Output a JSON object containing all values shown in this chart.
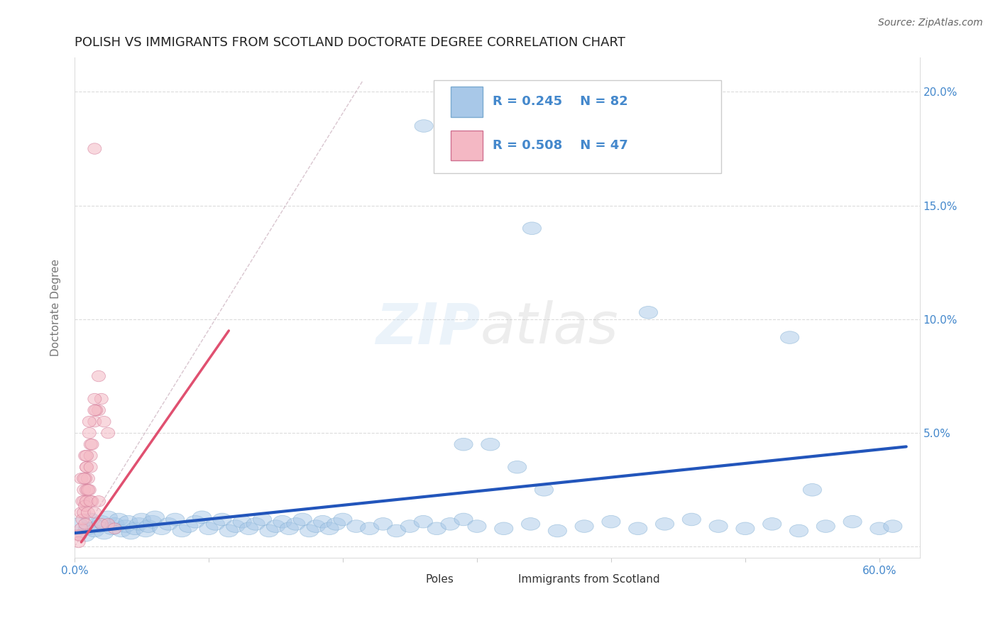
{
  "title": "POLISH VS IMMIGRANTS FROM SCOTLAND DOCTORATE DEGREE CORRELATION CHART",
  "source": "Source: ZipAtlas.com",
  "ylabel": "Doctorate Degree",
  "xlim": [
    0.0,
    0.63
  ],
  "ylim": [
    -0.005,
    0.215
  ],
  "xticks": [
    0.0,
    0.1,
    0.2,
    0.3,
    0.4,
    0.5,
    0.6
  ],
  "xticklabels": [
    "0.0%",
    "",
    "",
    "",
    "",
    "",
    "60.0%"
  ],
  "yticks": [
    0.0,
    0.05,
    0.1,
    0.15,
    0.2
  ],
  "yticklabels_right": [
    "",
    "5.0%",
    "10.0%",
    "15.0%",
    "20.0%"
  ],
  "grid_color": "#cccccc",
  "background_color": "#ffffff",
  "legend_R_blue": "R = 0.245",
  "legend_N_blue": "N = 82",
  "legend_R_pink": "R = 0.508",
  "legend_N_pink": "N = 47",
  "blue_color": "#a8c8e8",
  "pink_color": "#f4b8c4",
  "blue_line_color": "#2255bb",
  "pink_line_color": "#e05070",
  "text_color": "#4488cc",
  "blue_trendline_x": [
    0.0,
    0.62
  ],
  "blue_trendline_y": [
    0.006,
    0.044
  ],
  "pink_trendline_x": [
    0.005,
    0.115
  ],
  "pink_trendline_y": [
    0.002,
    0.095
  ],
  "diag_line_x": [
    0.0,
    0.215
  ],
  "diag_line_y": [
    0.0,
    0.205
  ],
  "poles_x": [
    0.003,
    0.008,
    0.01,
    0.012,
    0.015,
    0.018,
    0.02,
    0.022,
    0.025,
    0.028,
    0.03,
    0.033,
    0.035,
    0.038,
    0.04,
    0.042,
    0.045,
    0.048,
    0.05,
    0.053,
    0.055,
    0.058,
    0.06,
    0.065,
    0.07,
    0.075,
    0.08,
    0.085,
    0.09,
    0.095,
    0.1,
    0.105,
    0.11,
    0.115,
    0.12,
    0.125,
    0.13,
    0.135,
    0.14,
    0.145,
    0.15,
    0.155,
    0.16,
    0.165,
    0.17,
    0.175,
    0.18,
    0.185,
    0.19,
    0.195,
    0.2,
    0.21,
    0.22,
    0.23,
    0.24,
    0.25,
    0.26,
    0.27,
    0.28,
    0.29,
    0.3,
    0.32,
    0.34,
    0.36,
    0.38,
    0.4,
    0.42,
    0.44,
    0.46,
    0.48,
    0.5,
    0.52,
    0.54,
    0.56,
    0.58,
    0.6,
    0.31,
    0.33,
    0.35,
    0.29,
    0.55,
    0.61
  ],
  "poles_y": [
    0.01,
    0.005,
    0.008,
    0.012,
    0.007,
    0.009,
    0.011,
    0.006,
    0.013,
    0.008,
    0.01,
    0.012,
    0.007,
    0.009,
    0.011,
    0.006,
    0.008,
    0.01,
    0.012,
    0.007,
    0.009,
    0.011,
    0.013,
    0.008,
    0.01,
    0.012,
    0.007,
    0.009,
    0.011,
    0.013,
    0.008,
    0.01,
    0.012,
    0.007,
    0.009,
    0.011,
    0.008,
    0.01,
    0.012,
    0.007,
    0.009,
    0.011,
    0.008,
    0.01,
    0.012,
    0.007,
    0.009,
    0.011,
    0.008,
    0.01,
    0.012,
    0.009,
    0.008,
    0.01,
    0.007,
    0.009,
    0.011,
    0.008,
    0.01,
    0.012,
    0.009,
    0.008,
    0.01,
    0.007,
    0.009,
    0.011,
    0.008,
    0.01,
    0.012,
    0.009,
    0.008,
    0.01,
    0.007,
    0.009,
    0.011,
    0.008,
    0.045,
    0.035,
    0.025,
    0.045,
    0.025,
    0.009
  ],
  "scotland_x": [
    0.003,
    0.005,
    0.007,
    0.009,
    0.012,
    0.015,
    0.018,
    0.02,
    0.022,
    0.025,
    0.005,
    0.008,
    0.011,
    0.015,
    0.018,
    0.007,
    0.01,
    0.013,
    0.016,
    0.009,
    0.012,
    0.015,
    0.008,
    0.011,
    0.006,
    0.009,
    0.007,
    0.009,
    0.011,
    0.013,
    0.003,
    0.004,
    0.005,
    0.006,
    0.007,
    0.008,
    0.009,
    0.01,
    0.012,
    0.008,
    0.01,
    0.012,
    0.015,
    0.018,
    0.02,
    0.025,
    0.03
  ],
  "scotland_y": [
    0.005,
    0.015,
    0.025,
    0.035,
    0.045,
    0.055,
    0.06,
    0.065,
    0.055,
    0.05,
    0.03,
    0.04,
    0.055,
    0.065,
    0.075,
    0.02,
    0.03,
    0.045,
    0.06,
    0.025,
    0.04,
    0.06,
    0.03,
    0.05,
    0.02,
    0.04,
    0.03,
    0.035,
    0.025,
    0.02,
    0.002,
    0.005,
    0.008,
    0.012,
    0.015,
    0.018,
    0.02,
    0.025,
    0.035,
    0.01,
    0.015,
    0.02,
    0.015,
    0.02,
    0.01,
    0.01,
    0.008
  ],
  "scotland_outlier_x": [
    0.015
  ],
  "scotland_outlier_y": [
    0.175
  ]
}
